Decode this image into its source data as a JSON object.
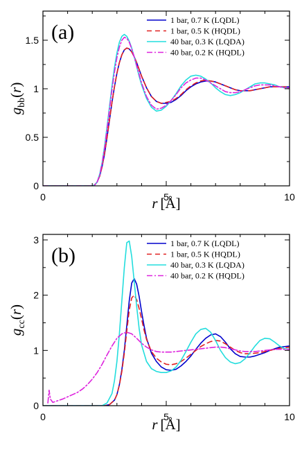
{
  "chart_data": [
    {
      "type": "line",
      "panel_label": "(a)",
      "xlabel": {
        "var": "r",
        "unit": "[Å]"
      },
      "ylabel": {
        "var": "g",
        "sub": "bb",
        "args": "(r)"
      },
      "xlim": [
        0,
        10
      ],
      "ylim": [
        0,
        1.8
      ],
      "xticks": [
        0,
        5,
        10
      ],
      "yticks": [
        0,
        0.5,
        1,
        1.5
      ],
      "xtick_labels": [
        "0",
        "5",
        "10"
      ],
      "ytick_labels": [
        "0",
        "0.5",
        "1",
        "1.5"
      ],
      "grid": false,
      "legend_position": "top-right",
      "series": [
        {
          "name": "1 bar, 0.7 K (LQDL)",
          "color": "#0000cc",
          "dash": "solid",
          "x": [
            0,
            2.0,
            2.1,
            2.2,
            2.3,
            2.4,
            2.5,
            2.6,
            2.7,
            2.8,
            2.9,
            3.0,
            3.1,
            3.2,
            3.3,
            3.4,
            3.5,
            3.6,
            3.7,
            3.8,
            3.9,
            4.0,
            4.2,
            4.4,
            4.6,
            4.8,
            5.0,
            5.2,
            5.4,
            5.6,
            5.8,
            6.0,
            6.2,
            6.4,
            6.6,
            6.8,
            7.0,
            7.2,
            7.4,
            7.6,
            7.8,
            8.0,
            8.2,
            8.4,
            8.6,
            8.8,
            9.0,
            9.2,
            9.4,
            9.6,
            9.8,
            10.0
          ],
          "y": [
            0,
            0,
            0.01,
            0.04,
            0.1,
            0.2,
            0.33,
            0.5,
            0.68,
            0.86,
            1.02,
            1.16,
            1.27,
            1.35,
            1.4,
            1.42,
            1.41,
            1.38,
            1.33,
            1.27,
            1.2,
            1.13,
            1.01,
            0.92,
            0.87,
            0.85,
            0.85,
            0.86,
            0.89,
            0.93,
            0.98,
            1.02,
            1.05,
            1.07,
            1.08,
            1.08,
            1.07,
            1.05,
            1.03,
            1.01,
            0.99,
            0.98,
            0.98,
            0.98,
            0.99,
            1.0,
            1.01,
            1.02,
            1.02,
            1.02,
            1.02,
            1.02
          ]
        },
        {
          "name": "1 bar, 0.5 K (HQDL)",
          "color": "#e02020",
          "dash": "7,5",
          "x": [
            0,
            2.0,
            2.1,
            2.2,
            2.3,
            2.4,
            2.5,
            2.6,
            2.7,
            2.8,
            2.9,
            3.0,
            3.1,
            3.2,
            3.3,
            3.4,
            3.5,
            3.6,
            3.7,
            3.8,
            3.9,
            4.0,
            4.2,
            4.4,
            4.6,
            4.8,
            5.0,
            5.2,
            5.4,
            5.6,
            5.8,
            6.0,
            6.2,
            6.4,
            6.6,
            6.8,
            7.0,
            7.2,
            7.4,
            7.6,
            7.8,
            8.0,
            8.2,
            8.4,
            8.6,
            8.8,
            9.0,
            9.2,
            9.4,
            9.6,
            9.8,
            10.0
          ],
          "y": [
            0,
            0,
            0.01,
            0.04,
            0.1,
            0.2,
            0.34,
            0.5,
            0.68,
            0.86,
            1.02,
            1.16,
            1.27,
            1.35,
            1.4,
            1.42,
            1.41,
            1.38,
            1.33,
            1.27,
            1.2,
            1.13,
            1.01,
            0.92,
            0.87,
            0.85,
            0.86,
            0.87,
            0.9,
            0.94,
            0.99,
            1.03,
            1.06,
            1.08,
            1.09,
            1.08,
            1.07,
            1.05,
            1.03,
            1.01,
            0.99,
            0.98,
            0.98,
            0.98,
            0.99,
            1.0,
            1.01,
            1.02,
            1.02,
            1.02,
            1.02,
            1.02
          ]
        },
        {
          "name": "40 bar, 0.3 K (LQDA)",
          "color": "#22dddd",
          "dash": "solid",
          "x": [
            0,
            2.0,
            2.1,
            2.2,
            2.3,
            2.4,
            2.5,
            2.6,
            2.7,
            2.8,
            2.9,
            3.0,
            3.1,
            3.2,
            3.3,
            3.4,
            3.5,
            3.6,
            3.7,
            3.8,
            3.9,
            4.0,
            4.2,
            4.4,
            4.6,
            4.8,
            5.0,
            5.2,
            5.4,
            5.6,
            5.8,
            6.0,
            6.2,
            6.4,
            6.6,
            6.8,
            7.0,
            7.2,
            7.4,
            7.6,
            7.8,
            8.0,
            8.2,
            8.4,
            8.6,
            8.8,
            9.0,
            9.2,
            9.4,
            9.6,
            9.8,
            10.0
          ],
          "y": [
            0,
            0,
            0.01,
            0.04,
            0.12,
            0.24,
            0.41,
            0.61,
            0.82,
            1.03,
            1.22,
            1.37,
            1.48,
            1.54,
            1.56,
            1.54,
            1.49,
            1.42,
            1.33,
            1.23,
            1.13,
            1.04,
            0.9,
            0.81,
            0.77,
            0.78,
            0.82,
            0.88,
            0.95,
            1.03,
            1.09,
            1.13,
            1.14,
            1.13,
            1.1,
            1.06,
            1.01,
            0.97,
            0.94,
            0.93,
            0.94,
            0.96,
            0.99,
            1.02,
            1.05,
            1.06,
            1.06,
            1.05,
            1.04,
            1.02,
            1.01,
            1.01
          ]
        },
        {
          "name": "40 bar, 0.2 K (HQDL)",
          "color": "#dd22dd",
          "dash": "8,3,2,3",
          "x": [
            0,
            2.0,
            2.1,
            2.2,
            2.3,
            2.4,
            2.5,
            2.6,
            2.7,
            2.8,
            2.9,
            3.0,
            3.1,
            3.2,
            3.3,
            3.4,
            3.5,
            3.6,
            3.7,
            3.8,
            3.9,
            4.0,
            4.2,
            4.4,
            4.6,
            4.8,
            5.0,
            5.2,
            5.4,
            5.6,
            5.8,
            6.0,
            6.2,
            6.4,
            6.6,
            6.8,
            7.0,
            7.2,
            7.4,
            7.6,
            7.8,
            8.0,
            8.2,
            8.4,
            8.6,
            8.8,
            9.0,
            9.2,
            9.4,
            9.6,
            9.8,
            10.0
          ],
          "y": [
            0,
            0,
            0.01,
            0.04,
            0.11,
            0.23,
            0.39,
            0.58,
            0.79,
            0.99,
            1.17,
            1.32,
            1.43,
            1.5,
            1.53,
            1.52,
            1.48,
            1.41,
            1.33,
            1.24,
            1.15,
            1.06,
            0.92,
            0.83,
            0.79,
            0.8,
            0.83,
            0.88,
            0.94,
            1.01,
            1.06,
            1.09,
            1.11,
            1.11,
            1.09,
            1.06,
            1.03,
            1.0,
            0.97,
            0.96,
            0.96,
            0.97,
            0.99,
            1.01,
            1.03,
            1.04,
            1.04,
            1.04,
            1.03,
            1.02,
            1.01,
            1.01
          ]
        }
      ]
    },
    {
      "type": "line",
      "panel_label": "(b)",
      "xlabel": {
        "var": "r",
        "unit": "[Å]"
      },
      "ylabel": {
        "var": "g",
        "sub": "cc",
        "args": "(r)"
      },
      "xlim": [
        0,
        10
      ],
      "ylim": [
        0,
        3.1
      ],
      "xticks": [
        0,
        5,
        10
      ],
      "yticks": [
        0,
        1,
        2,
        3
      ],
      "xtick_labels": [
        "0",
        "5",
        "10"
      ],
      "ytick_labels": [
        "0",
        "1",
        "2",
        "3"
      ],
      "grid": false,
      "legend_position": "top-right",
      "series": [
        {
          "name": "1 bar, 0.7 K (LQDL)",
          "color": "#0000cc",
          "dash": "solid",
          "x": [
            0,
            2.5,
            2.7,
            2.9,
            3.0,
            3.1,
            3.2,
            3.3,
            3.4,
            3.5,
            3.6,
            3.7,
            3.8,
            3.9,
            4.0,
            4.1,
            4.2,
            4.4,
            4.6,
            4.8,
            5.0,
            5.2,
            5.4,
            5.6,
            5.8,
            6.0,
            6.2,
            6.4,
            6.6,
            6.8,
            7.0,
            7.2,
            7.4,
            7.6,
            7.8,
            8.0,
            8.2,
            8.4,
            8.6,
            8.8,
            9.0,
            9.2,
            9.4,
            9.6,
            9.8,
            10.0
          ],
          "y": [
            0,
            0,
            0.02,
            0.1,
            0.2,
            0.38,
            0.65,
            1.0,
            1.45,
            1.9,
            2.22,
            2.3,
            2.2,
            1.98,
            1.7,
            1.45,
            1.22,
            0.95,
            0.8,
            0.7,
            0.65,
            0.64,
            0.66,
            0.72,
            0.8,
            0.9,
            1.02,
            1.13,
            1.22,
            1.28,
            1.3,
            1.25,
            1.15,
            1.03,
            0.94,
            0.89,
            0.88,
            0.88,
            0.9,
            0.93,
            0.96,
            1.0,
            1.03,
            1.06,
            1.07,
            1.08
          ]
        },
        {
          "name": "1 bar, 0.5 K (HQDL)",
          "color": "#e02020",
          "dash": "7,5",
          "x": [
            0,
            2.5,
            2.7,
            2.9,
            3.0,
            3.1,
            3.2,
            3.3,
            3.4,
            3.5,
            3.6,
            3.7,
            3.8,
            3.9,
            4.0,
            4.1,
            4.2,
            4.4,
            4.6,
            4.8,
            5.0,
            5.2,
            5.4,
            5.6,
            5.8,
            6.0,
            6.2,
            6.4,
            6.6,
            6.8,
            7.0,
            7.2,
            7.4,
            7.6,
            7.8,
            8.0,
            8.2,
            8.4,
            8.6,
            8.8,
            9.0,
            9.2,
            9.4,
            9.6,
            9.8,
            10.0
          ],
          "y": [
            0,
            0,
            0.02,
            0.1,
            0.2,
            0.37,
            0.62,
            0.95,
            1.35,
            1.73,
            1.95,
            2.0,
            1.92,
            1.76,
            1.57,
            1.37,
            1.2,
            0.98,
            0.86,
            0.79,
            0.75,
            0.74,
            0.76,
            0.8,
            0.86,
            0.93,
            1.0,
            1.07,
            1.12,
            1.16,
            1.18,
            1.17,
            1.12,
            1.06,
            1.0,
            0.96,
            0.94,
            0.94,
            0.95,
            0.96,
            0.98,
            1.0,
            1.02,
            1.04,
            1.05,
            1.06
          ]
        },
        {
          "name": "40 bar, 0.3 K (LQDA)",
          "color": "#22dddd",
          "dash": "solid",
          "x": [
            0,
            2.4,
            2.6,
            2.8,
            2.9,
            3.0,
            3.1,
            3.2,
            3.3,
            3.4,
            3.5,
            3.6,
            3.7,
            3.8,
            3.9,
            4.0,
            4.2,
            4.4,
            4.6,
            4.8,
            5.0,
            5.2,
            5.4,
            5.6,
            5.8,
            6.0,
            6.2,
            6.4,
            6.6,
            6.8,
            7.0,
            7.2,
            7.4,
            7.6,
            7.8,
            8.0,
            8.2,
            8.4,
            8.6,
            8.8,
            9.0,
            9.2,
            9.4,
            9.6,
            9.8,
            10.0
          ],
          "y": [
            0,
            0,
            0.05,
            0.22,
            0.45,
            0.8,
            1.3,
            1.9,
            2.5,
            2.95,
            2.98,
            2.7,
            2.25,
            1.8,
            1.4,
            1.1,
            0.8,
            0.67,
            0.62,
            0.6,
            0.6,
            0.63,
            0.7,
            0.82,
            0.98,
            1.15,
            1.3,
            1.38,
            1.4,
            1.33,
            1.18,
            1.0,
            0.87,
            0.79,
            0.76,
            0.78,
            0.85,
            0.96,
            1.08,
            1.18,
            1.22,
            1.21,
            1.15,
            1.08,
            1.03,
            1.02
          ]
        },
        {
          "name": "40 bar, 0.2 K (HQDL)",
          "color": "#dd22dd",
          "dash": "8,3,2,3",
          "x": [
            0.2,
            0.25,
            0.3,
            0.4,
            0.6,
            0.8,
            1.0,
            1.2,
            1.4,
            1.6,
            1.8,
            2.0,
            2.2,
            2.4,
            2.6,
            2.8,
            3.0,
            3.2,
            3.4,
            3.6,
            3.8,
            4.0,
            4.2,
            4.4,
            4.6,
            4.8,
            5.0,
            5.2,
            5.4,
            5.6,
            5.8,
            6.0,
            6.2,
            6.4,
            6.6,
            6.8,
            7.0,
            7.2,
            7.4,
            7.6,
            7.8,
            8.0,
            8.2,
            8.4,
            8.6,
            8.8,
            9.0,
            9.2,
            9.4,
            9.6,
            9.8,
            10.0
          ],
          "y": [
            0.05,
            0.28,
            0.12,
            0.06,
            0.09,
            0.12,
            0.16,
            0.2,
            0.24,
            0.3,
            0.38,
            0.48,
            0.6,
            0.75,
            0.92,
            1.08,
            1.22,
            1.3,
            1.33,
            1.3,
            1.22,
            1.13,
            1.06,
            1.01,
            0.98,
            0.97,
            0.97,
            0.97,
            0.98,
            0.99,
            1.0,
            1.01,
            1.02,
            1.03,
            1.04,
            1.05,
            1.06,
            1.06,
            1.05,
            1.03,
            1.01,
            0.99,
            0.98,
            0.98,
            0.98,
            0.99,
            1.0,
            1.01,
            1.02,
            1.02,
            1.02,
            1.02
          ]
        }
      ]
    }
  ]
}
